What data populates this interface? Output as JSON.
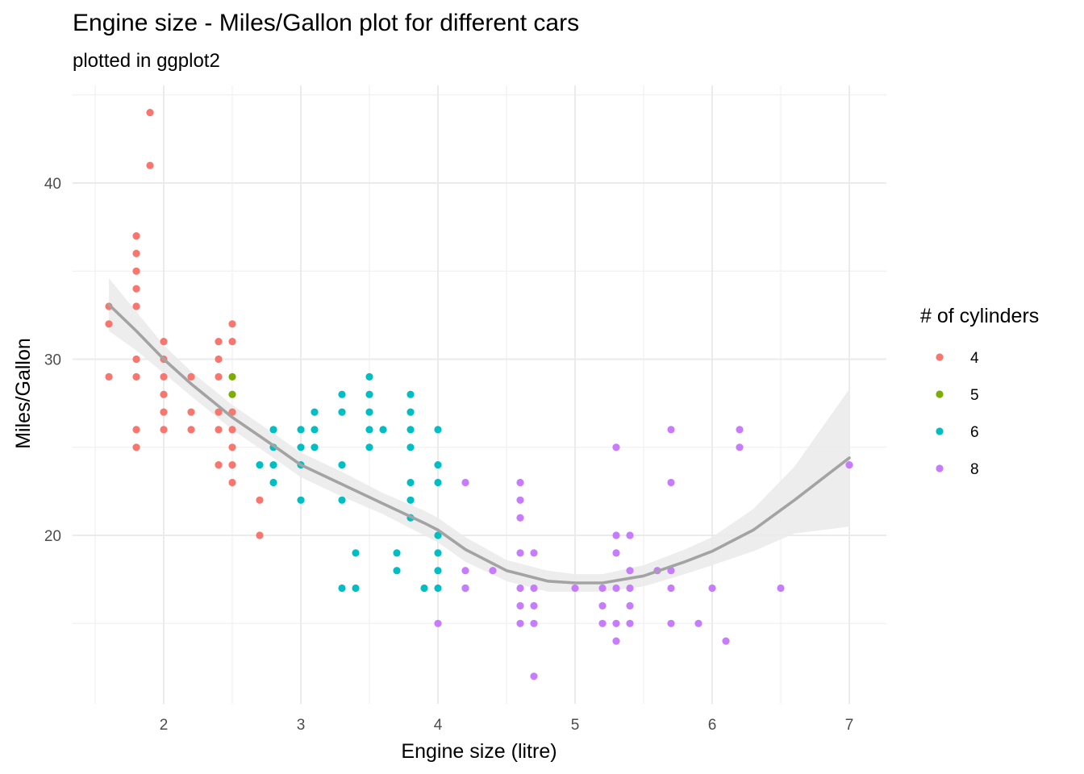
{
  "chart_data": {
    "type": "scatter",
    "title": "Engine size - Miles/Gallon plot for different cars",
    "subtitle": "plotted in ggplot2",
    "xlabel": "Engine size (litre)",
    "ylabel": "Miles/Gallon",
    "xlim": [
      1.5,
      7.2
    ],
    "ylim": [
      10.5,
      45.6
    ],
    "x_ticks": [
      2,
      3,
      4,
      5,
      6,
      7
    ],
    "y_ticks": [
      20,
      30,
      40
    ],
    "grid": true,
    "legend": {
      "title": "# of cylinders",
      "position": "right"
    },
    "series": [
      {
        "name": "4",
        "color": "#F8766D",
        "points": [
          [
            1.6,
            33
          ],
          [
            1.6,
            32
          ],
          [
            1.6,
            29
          ],
          [
            1.8,
            37
          ],
          [
            1.8,
            36
          ],
          [
            1.8,
            35
          ],
          [
            1.8,
            34
          ],
          [
            1.8,
            33
          ],
          [
            1.8,
            30
          ],
          [
            1.8,
            29
          ],
          [
            1.8,
            26
          ],
          [
            1.8,
            25
          ],
          [
            1.9,
            44
          ],
          [
            1.9,
            41
          ],
          [
            2.0,
            31
          ],
          [
            2.0,
            30
          ],
          [
            2.0,
            29
          ],
          [
            2.0,
            28
          ],
          [
            2.0,
            27
          ],
          [
            2.0,
            26
          ],
          [
            2.2,
            29
          ],
          [
            2.2,
            27
          ],
          [
            2.2,
            26
          ],
          [
            2.4,
            31
          ],
          [
            2.4,
            30
          ],
          [
            2.4,
            29
          ],
          [
            2.4,
            27
          ],
          [
            2.4,
            26
          ],
          [
            2.4,
            24
          ],
          [
            2.5,
            32
          ],
          [
            2.5,
            31
          ],
          [
            2.5,
            27
          ],
          [
            2.5,
            26
          ],
          [
            2.5,
            25
          ],
          [
            2.5,
            24
          ],
          [
            2.5,
            23
          ],
          [
            2.7,
            22
          ],
          [
            2.7,
            20
          ]
        ]
      },
      {
        "name": "5",
        "color": "#7CAE00",
        "points": [
          [
            2.5,
            29
          ],
          [
            2.5,
            28
          ]
        ]
      },
      {
        "name": "6",
        "color": "#00BFC4",
        "points": [
          [
            2.7,
            24
          ],
          [
            2.8,
            26
          ],
          [
            2.8,
            25
          ],
          [
            2.8,
            24
          ],
          [
            2.8,
            23
          ],
          [
            3.0,
            26
          ],
          [
            3.0,
            25
          ],
          [
            3.0,
            24
          ],
          [
            3.0,
            22
          ],
          [
            3.1,
            27
          ],
          [
            3.1,
            26
          ],
          [
            3.1,
            25
          ],
          [
            3.3,
            28
          ],
          [
            3.3,
            27
          ],
          [
            3.3,
            24
          ],
          [
            3.3,
            22
          ],
          [
            3.3,
            17
          ],
          [
            3.4,
            19
          ],
          [
            3.4,
            17
          ],
          [
            3.5,
            29
          ],
          [
            3.5,
            28
          ],
          [
            3.5,
            27
          ],
          [
            3.5,
            26
          ],
          [
            3.5,
            25
          ],
          [
            3.6,
            26
          ],
          [
            3.7,
            19
          ],
          [
            3.7,
            18
          ],
          [
            3.8,
            28
          ],
          [
            3.8,
            27
          ],
          [
            3.8,
            26
          ],
          [
            3.8,
            25
          ],
          [
            3.8,
            23
          ],
          [
            3.8,
            22
          ],
          [
            3.8,
            21
          ],
          [
            3.9,
            17
          ],
          [
            4.0,
            26
          ],
          [
            4.0,
            24
          ],
          [
            4.0,
            23
          ],
          [
            4.0,
            20
          ],
          [
            4.0,
            19
          ],
          [
            4.0,
            18
          ],
          [
            4.0,
            17
          ],
          [
            4.2,
            17
          ]
        ]
      },
      {
        "name": "8",
        "color": "#C77CFF",
        "points": [
          [
            4.0,
            15
          ],
          [
            4.2,
            23
          ],
          [
            4.2,
            18
          ],
          [
            4.2,
            17
          ],
          [
            4.4,
            18
          ],
          [
            4.6,
            23
          ],
          [
            4.6,
            22
          ],
          [
            4.6,
            21
          ],
          [
            4.6,
            19
          ],
          [
            4.6,
            17
          ],
          [
            4.6,
            16
          ],
          [
            4.6,
            15
          ],
          [
            4.7,
            19
          ],
          [
            4.7,
            17
          ],
          [
            4.7,
            16
          ],
          [
            4.7,
            15
          ],
          [
            4.7,
            12
          ],
          [
            5.0,
            17
          ],
          [
            5.2,
            17
          ],
          [
            5.2,
            16
          ],
          [
            5.2,
            15
          ],
          [
            5.3,
            25
          ],
          [
            5.3,
            20
          ],
          [
            5.3,
            19
          ],
          [
            5.3,
            17
          ],
          [
            5.3,
            15
          ],
          [
            5.3,
            14
          ],
          [
            5.4,
            20
          ],
          [
            5.4,
            18
          ],
          [
            5.4,
            17
          ],
          [
            5.4,
            16
          ],
          [
            5.4,
            15
          ],
          [
            5.6,
            18
          ],
          [
            5.7,
            26
          ],
          [
            5.7,
            23
          ],
          [
            5.7,
            18
          ],
          [
            5.7,
            17
          ],
          [
            5.7,
            15
          ],
          [
            5.9,
            15
          ],
          [
            6.0,
            17
          ],
          [
            6.1,
            14
          ],
          [
            6.2,
            26
          ],
          [
            6.2,
            25
          ],
          [
            6.5,
            17
          ],
          [
            7.0,
            24
          ]
        ]
      }
    ],
    "smooth": {
      "color": "#a3a3a3",
      "band_color": "#ebebeb",
      "x": [
        1.6,
        1.8,
        2.0,
        2.2,
        2.5,
        2.8,
        3.0,
        3.3,
        3.6,
        3.9,
        4.0,
        4.2,
        4.5,
        4.8,
        5.0,
        5.2,
        5.5,
        5.8,
        6.0,
        6.3,
        6.6,
        7.0
      ],
      "y": [
        33.1,
        31.6,
        30.0,
        28.6,
        26.7,
        25.1,
        24.0,
        22.9,
        21.8,
        20.7,
        20.3,
        19.2,
        18.0,
        17.4,
        17.3,
        17.3,
        17.7,
        18.5,
        19.1,
        20.3,
        22.0,
        24.4
      ],
      "upper": [
        34.6,
        32.7,
        30.8,
        29.3,
        27.4,
        25.8,
        24.7,
        23.6,
        22.4,
        21.4,
        21.0,
        19.9,
        18.6,
        18.0,
        17.8,
        17.8,
        18.3,
        19.2,
        19.9,
        21.5,
        23.9,
        28.3
      ],
      "lower": [
        31.6,
        30.5,
        29.2,
        27.9,
        26.0,
        24.4,
        23.3,
        22.2,
        21.2,
        20.0,
        19.6,
        18.5,
        17.4,
        16.8,
        16.8,
        16.8,
        17.1,
        17.8,
        18.3,
        19.1,
        20.1,
        20.5
      ]
    }
  }
}
